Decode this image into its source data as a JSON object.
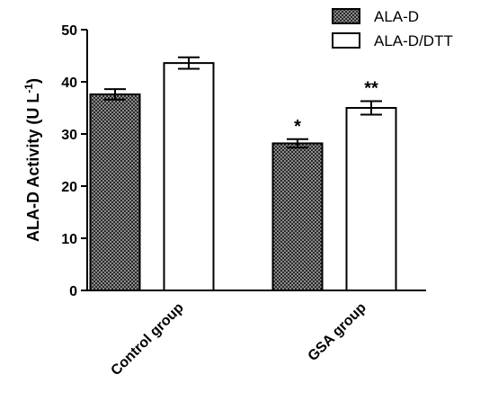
{
  "chart_data": {
    "type": "bar",
    "categories": [
      "Control group",
      "GSA group"
    ],
    "series": [
      {
        "name": "ALA-D",
        "values": [
          37.6,
          28.2
        ],
        "errors": [
          1.0,
          0.8
        ],
        "fill": "crosshatch",
        "color": "#555555"
      },
      {
        "name": "ALA-D/DTT",
        "values": [
          43.6,
          35.0
        ],
        "errors": [
          1.1,
          1.3
        ],
        "fill": "white",
        "color": "#ffffff"
      }
    ],
    "annotations": [
      {
        "category": "GSA group",
        "series": "ALA-D",
        "text": "*"
      },
      {
        "category": "GSA group",
        "series": "ALA-D/DTT",
        "text": "**"
      }
    ],
    "ylabel_main": "ALA-D Activity (U L",
    "ylabel_sup": "-1",
    "ylabel_close": ")",
    "ylim": [
      0,
      50
    ],
    "yticks": [
      "0",
      "10",
      "20",
      "30",
      "40",
      "50"
    ],
    "xlabel": "",
    "title": "",
    "legend_position": "top-right",
    "grid": false
  }
}
